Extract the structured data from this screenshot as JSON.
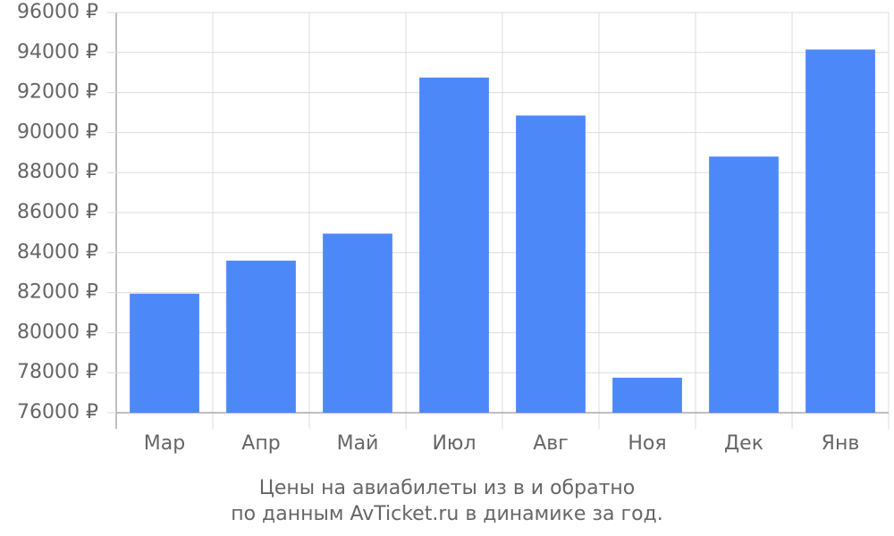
{
  "chart_data": {
    "type": "bar",
    "title": "Цены на авиабилеты из  в  и обратно",
    "subtitle": "по данным AvTicket.ru в динамике за год.",
    "categories": [
      "Мар",
      "Апр",
      "Май",
      "Июл",
      "Авг",
      "Ноя",
      "Дек",
      "Янв"
    ],
    "values": [
      81950,
      83600,
      84950,
      92750,
      90850,
      77750,
      88800,
      94150
    ],
    "color": "#4d88f9",
    "ylim": [
      76000,
      96000
    ],
    "yticks": [
      {
        "value": 76000,
        "label": "76000 ₽"
      },
      {
        "value": 78000,
        "label": "78000 ₽"
      },
      {
        "value": 80000,
        "label": "80000 ₽"
      },
      {
        "value": 82000,
        "label": "82000 ₽"
      },
      {
        "value": 84000,
        "label": "84000 ₽"
      },
      {
        "value": 86000,
        "label": "86000 ₽"
      },
      {
        "value": 88000,
        "label": "88000 ₽"
      },
      {
        "value": 90000,
        "label": "90000 ₽"
      },
      {
        "value": 92000,
        "label": "92000 ₽"
      },
      {
        "value": 94000,
        "label": "94000 ₽"
      },
      {
        "value": 96000,
        "label": "96000 ₽"
      }
    ],
    "grid": true
  }
}
